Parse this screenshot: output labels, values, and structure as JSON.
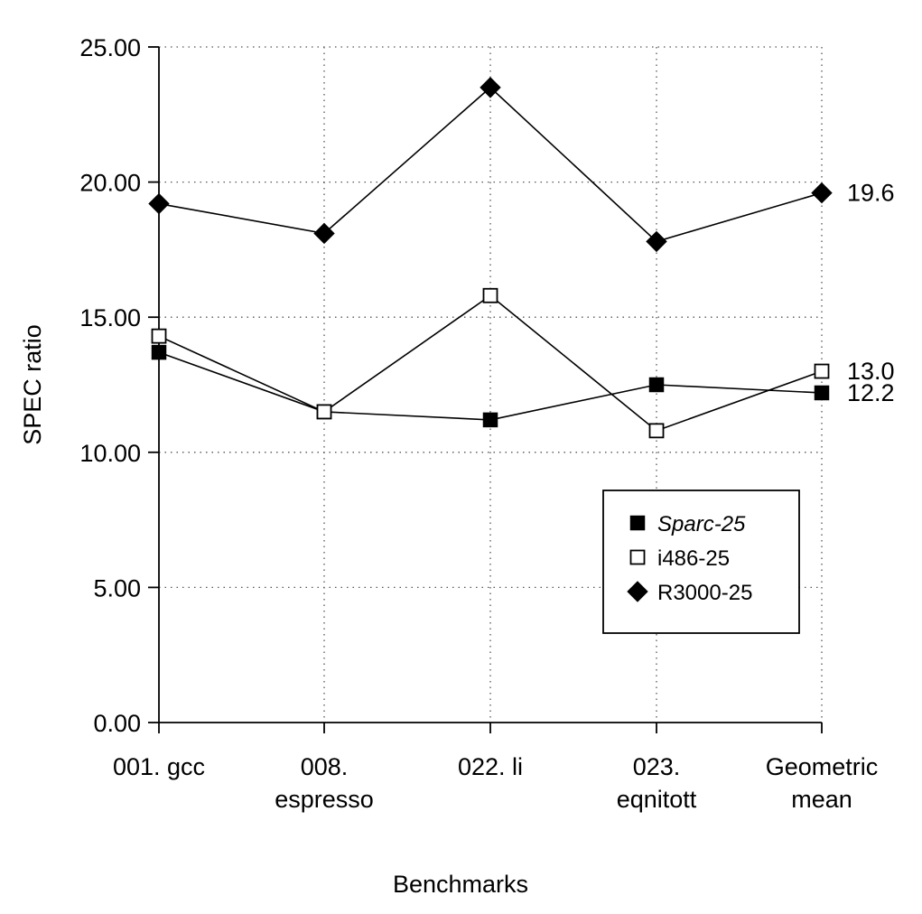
{
  "chart_data": {
    "type": "line",
    "title": "",
    "xlabel": "Benchmarks",
    "ylabel": "SPEC ratio",
    "categories": [
      [
        "001. gcc"
      ],
      [
        "008.",
        "espresso"
      ],
      [
        "022. li"
      ],
      [
        "023.",
        "eqnitott"
      ],
      [
        "Geometric",
        "mean"
      ]
    ],
    "y_ticks": [
      "0.00",
      "5.00",
      "10.00",
      "15.00",
      "20.00",
      "25.00"
    ],
    "ylim": [
      0,
      25
    ],
    "grid": true,
    "legend_position": "right, below center",
    "series": [
      {
        "name": "Sparc-25",
        "marker": "filled-square",
        "values": [
          13.7,
          11.5,
          11.2,
          12.5,
          12.2
        ],
        "end_label": "12.2"
      },
      {
        "name": "i486-25",
        "marker": "open-square",
        "values": [
          14.3,
          11.5,
          15.8,
          10.8,
          13.0
        ],
        "end_label": "13.0"
      },
      {
        "name": "R3000-25",
        "marker": "filled-diamond",
        "values": [
          19.2,
          18.1,
          23.5,
          17.8,
          19.6
        ],
        "end_label": "19.6"
      }
    ]
  }
}
